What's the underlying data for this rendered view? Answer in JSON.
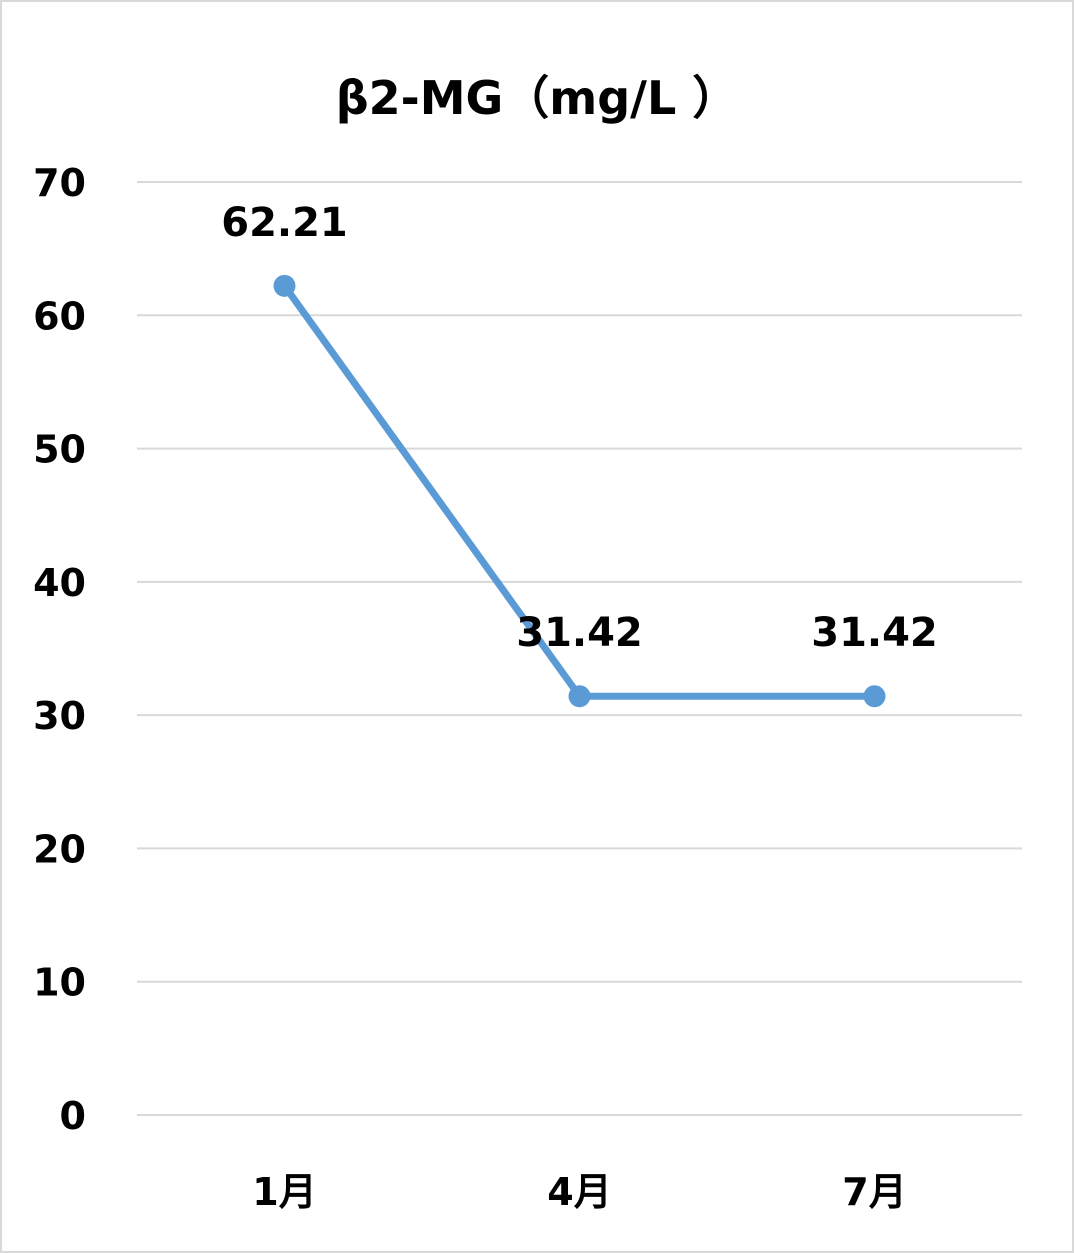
{
  "chart_data": {
    "type": "line",
    "title": "β2-MG（mg/L ）",
    "categories": [
      "1月",
      "4月",
      "7月"
    ],
    "series": [
      {
        "values": [
          62.21,
          31.42,
          31.42
        ]
      }
    ],
    "data_labels": [
      "62.21",
      "31.42",
      "31.42"
    ],
    "y_ticks": [
      "0",
      "10",
      "20",
      "30",
      "40",
      "50",
      "60",
      "70"
    ],
    "ylim": [
      0,
      70
    ],
    "grid": true,
    "legend": "none",
    "colors": {
      "line": "#5b9bd5",
      "grid": "#d9d9d9",
      "text": "#000000"
    }
  }
}
